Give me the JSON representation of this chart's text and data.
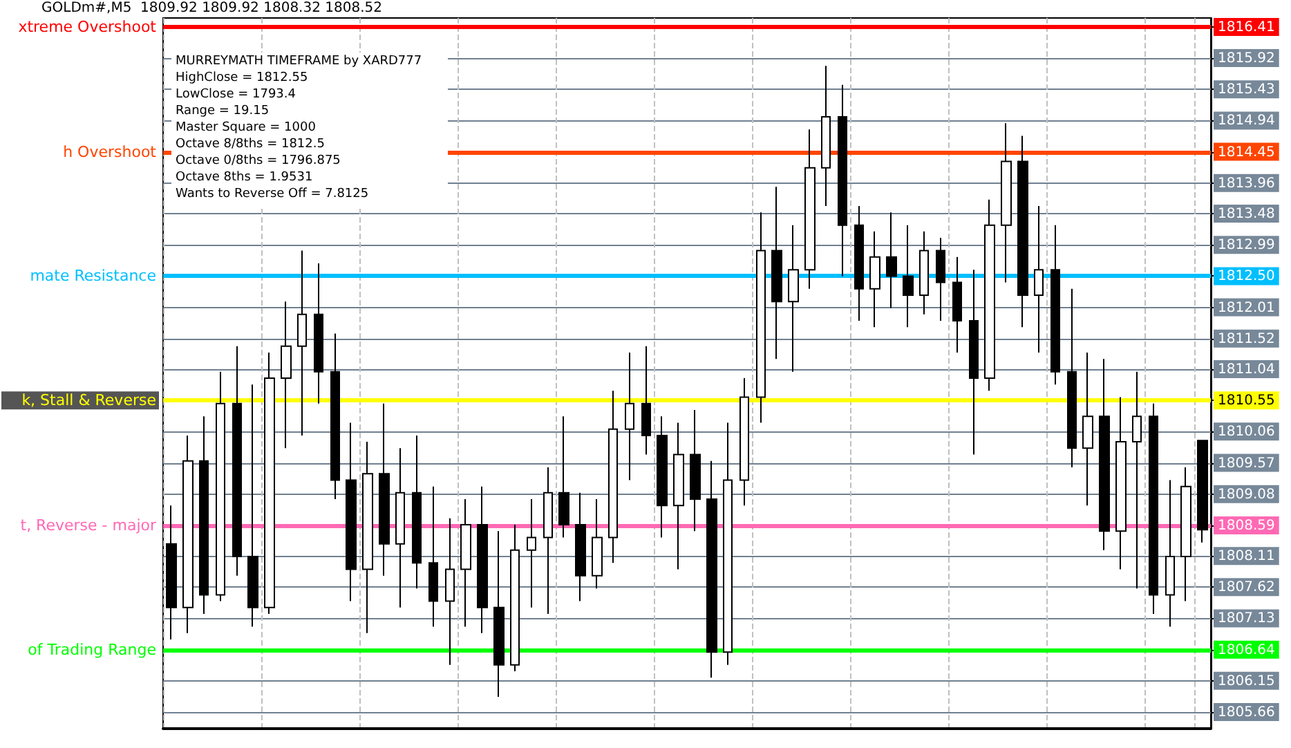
{
  "chart_data": {
    "type": "candlestick",
    "title": "GOLDm#,M5  1809.92 1809.92 1808.32 1808.52",
    "annotations": [
      "MURREYMATH TIMEFRAME by XARD777",
      "HighClose = 1812.55",
      "LowClose = 1793.4",
      "Range = 19.15",
      "Master Square = 1000",
      "Octave 8/8ths = 1812.5",
      "Octave 0/8ths = 1796.875",
      "Octave 8ths = 1.9531",
      "Wants to Reverse Off = 7.8125"
    ],
    "categories": [
      null,
      null,
      null,
      null,
      null,
      null,
      null,
      null,
      null,
      null,
      null,
      null,
      null,
      null,
      null,
      null,
      null,
      null,
      null,
      null,
      null,
      null,
      null,
      null,
      null,
      null,
      null,
      null,
      null,
      null,
      null,
      null,
      null,
      null,
      null,
      null,
      null,
      null,
      null,
      null,
      null,
      null,
      null,
      null,
      null,
      null,
      null,
      null,
      null,
      null,
      null,
      null,
      null,
      null,
      null,
      null,
      null,
      null,
      null,
      null,
      null,
      null,
      null,
      null
    ],
    "color": "#000000",
    "ohlc": [
      [
        1808.3,
        1808.9,
        1806.8,
        1807.3
      ],
      [
        1807.3,
        1810.0,
        1806.9,
        1809.6
      ],
      [
        1809.6,
        1810.3,
        1807.2,
        1807.5
      ],
      [
        1807.5,
        1811.0,
        1807.4,
        1810.5
      ],
      [
        1810.5,
        1811.4,
        1807.8,
        1808.1
      ],
      [
        1808.1,
        1810.8,
        1807.0,
        1807.3
      ],
      [
        1807.3,
        1811.3,
        1807.2,
        1810.9
      ],
      [
        1810.9,
        1812.1,
        1809.8,
        1811.4
      ],
      [
        1811.4,
        1812.9,
        1810.0,
        1811.9
      ],
      [
        1811.9,
        1812.7,
        1810.5,
        1811.0
      ],
      [
        1811.0,
        1811.6,
        1809.0,
        1809.3
      ],
      [
        1809.3,
        1810.2,
        1807.4,
        1807.9
      ],
      [
        1807.9,
        1809.9,
        1806.9,
        1809.4
      ],
      [
        1809.4,
        1810.5,
        1807.8,
        1808.3
      ],
      [
        1808.3,
        1809.8,
        1807.3,
        1809.1
      ],
      [
        1809.1,
        1810.0,
        1807.6,
        1808.0
      ],
      [
        1808.0,
        1809.2,
        1807.0,
        1807.4
      ],
      [
        1807.4,
        1808.7,
        1806.4,
        1807.9
      ],
      [
        1807.9,
        1809.0,
        1807.0,
        1808.6
      ],
      [
        1808.6,
        1809.2,
        1806.9,
        1807.3
      ],
      [
        1807.3,
        1808.5,
        1805.9,
        1806.4
      ],
      [
        1806.4,
        1808.6,
        1806.3,
        1808.2
      ],
      [
        1808.2,
        1809.0,
        1807.3,
        1808.4
      ],
      [
        1808.4,
        1809.5,
        1807.2,
        1809.1
      ],
      [
        1809.1,
        1810.3,
        1808.4,
        1808.6
      ],
      [
        1808.6,
        1809.1,
        1807.4,
        1807.8
      ],
      [
        1807.8,
        1809.0,
        1807.6,
        1808.4
      ],
      [
        1808.4,
        1810.7,
        1808.0,
        1810.1
      ],
      [
        1810.1,
        1811.3,
        1809.3,
        1810.5
      ],
      [
        1810.5,
        1811.4,
        1809.7,
        1810.0
      ],
      [
        1810.0,
        1810.3,
        1808.4,
        1808.9
      ],
      [
        1808.9,
        1810.2,
        1807.9,
        1809.7
      ],
      [
        1809.7,
        1810.4,
        1808.5,
        1809.0
      ],
      [
        1809.0,
        1809.6,
        1806.2,
        1806.6
      ],
      [
        1806.6,
        1810.2,
        1806.4,
        1809.3
      ],
      [
        1809.3,
        1810.9,
        1808.9,
        1810.6
      ],
      [
        1810.6,
        1813.5,
        1810.2,
        1812.9
      ],
      [
        1812.9,
        1813.9,
        1811.2,
        1812.1
      ],
      [
        1812.1,
        1813.3,
        1811.0,
        1812.6
      ],
      [
        1812.6,
        1814.8,
        1812.3,
        1814.2
      ],
      [
        1814.2,
        1815.8,
        1813.6,
        1815.0
      ],
      [
        1815.0,
        1815.5,
        1812.5,
        1813.3
      ],
      [
        1813.3,
        1813.6,
        1811.8,
        1812.3
      ],
      [
        1812.3,
        1813.2,
        1811.7,
        1812.8
      ],
      [
        1812.8,
        1813.5,
        1812.0,
        1812.5
      ],
      [
        1812.5,
        1813.3,
        1811.7,
        1812.2
      ],
      [
        1812.2,
        1813.2,
        1811.9,
        1812.9
      ],
      [
        1812.9,
        1813.1,
        1811.8,
        1812.4
      ],
      [
        1812.4,
        1812.8,
        1811.3,
        1811.8
      ],
      [
        1811.8,
        1812.6,
        1809.7,
        1810.9
      ],
      [
        1810.9,
        1813.7,
        1810.7,
        1813.3
      ],
      [
        1813.3,
        1814.9,
        1812.4,
        1814.3
      ],
      [
        1814.3,
        1814.7,
        1811.7,
        1812.2
      ],
      [
        1812.2,
        1813.6,
        1811.3,
        1812.6
      ],
      [
        1812.6,
        1813.3,
        1810.8,
        1811.0
      ],
      [
        1811.0,
        1812.3,
        1809.5,
        1809.8
      ],
      [
        1809.8,
        1811.3,
        1808.9,
        1810.3
      ],
      [
        1810.3,
        1811.2,
        1808.2,
        1808.5
      ],
      [
        1808.5,
        1810.6,
        1807.9,
        1809.9
      ],
      [
        1809.9,
        1811.0,
        1807.6,
        1810.3
      ],
      [
        1810.3,
        1810.5,
        1807.2,
        1807.5
      ],
      [
        1807.5,
        1809.3,
        1807.0,
        1808.1
      ],
      [
        1808.1,
        1809.5,
        1807.4,
        1809.2
      ],
      [
        1809.92,
        1809.92,
        1808.32,
        1808.52
      ]
    ],
    "ylim": [
      1805.4,
      1816.55
    ],
    "yticks": [
      1816.41,
      1815.92,
      1815.43,
      1814.94,
      1814.45,
      1813.96,
      1813.48,
      1812.99,
      {
        "value": 1812.5,
        "label": "1812.50"
      },
      1812.01,
      1811.52,
      1811.04,
      1810.55,
      1810.06,
      1809.57,
      1809.08,
      1808.59,
      1808.11,
      1807.62,
      1807.13,
      1806.64,
      1806.15,
      1805.66
    ],
    "grid": true,
    "ref_lines": [
      {
        "axis": "y",
        "value": 1816.41,
        "label": "xtreme Overshoot",
        "color": "#ff0000"
      },
      {
        "axis": "y",
        "value": 1814.45,
        "label": "h Overshoot",
        "color": "#ff4500"
      },
      {
        "axis": "y",
        "value": 1812.5,
        "label": "mate Resistance",
        "color": "#00bfff"
      },
      {
        "axis": "y",
        "value": 1810.55,
        "label": "k, Stall & Reverse",
        "color": "#ffff00"
      },
      {
        "axis": "y",
        "value": 1808.59,
        "label": "t, Reverse - major",
        "color": "#ff69b4"
      },
      {
        "axis": "y",
        "value": 1806.64,
        "label": "of Trading Range",
        "color": "#00ff00"
      }
    ]
  }
}
